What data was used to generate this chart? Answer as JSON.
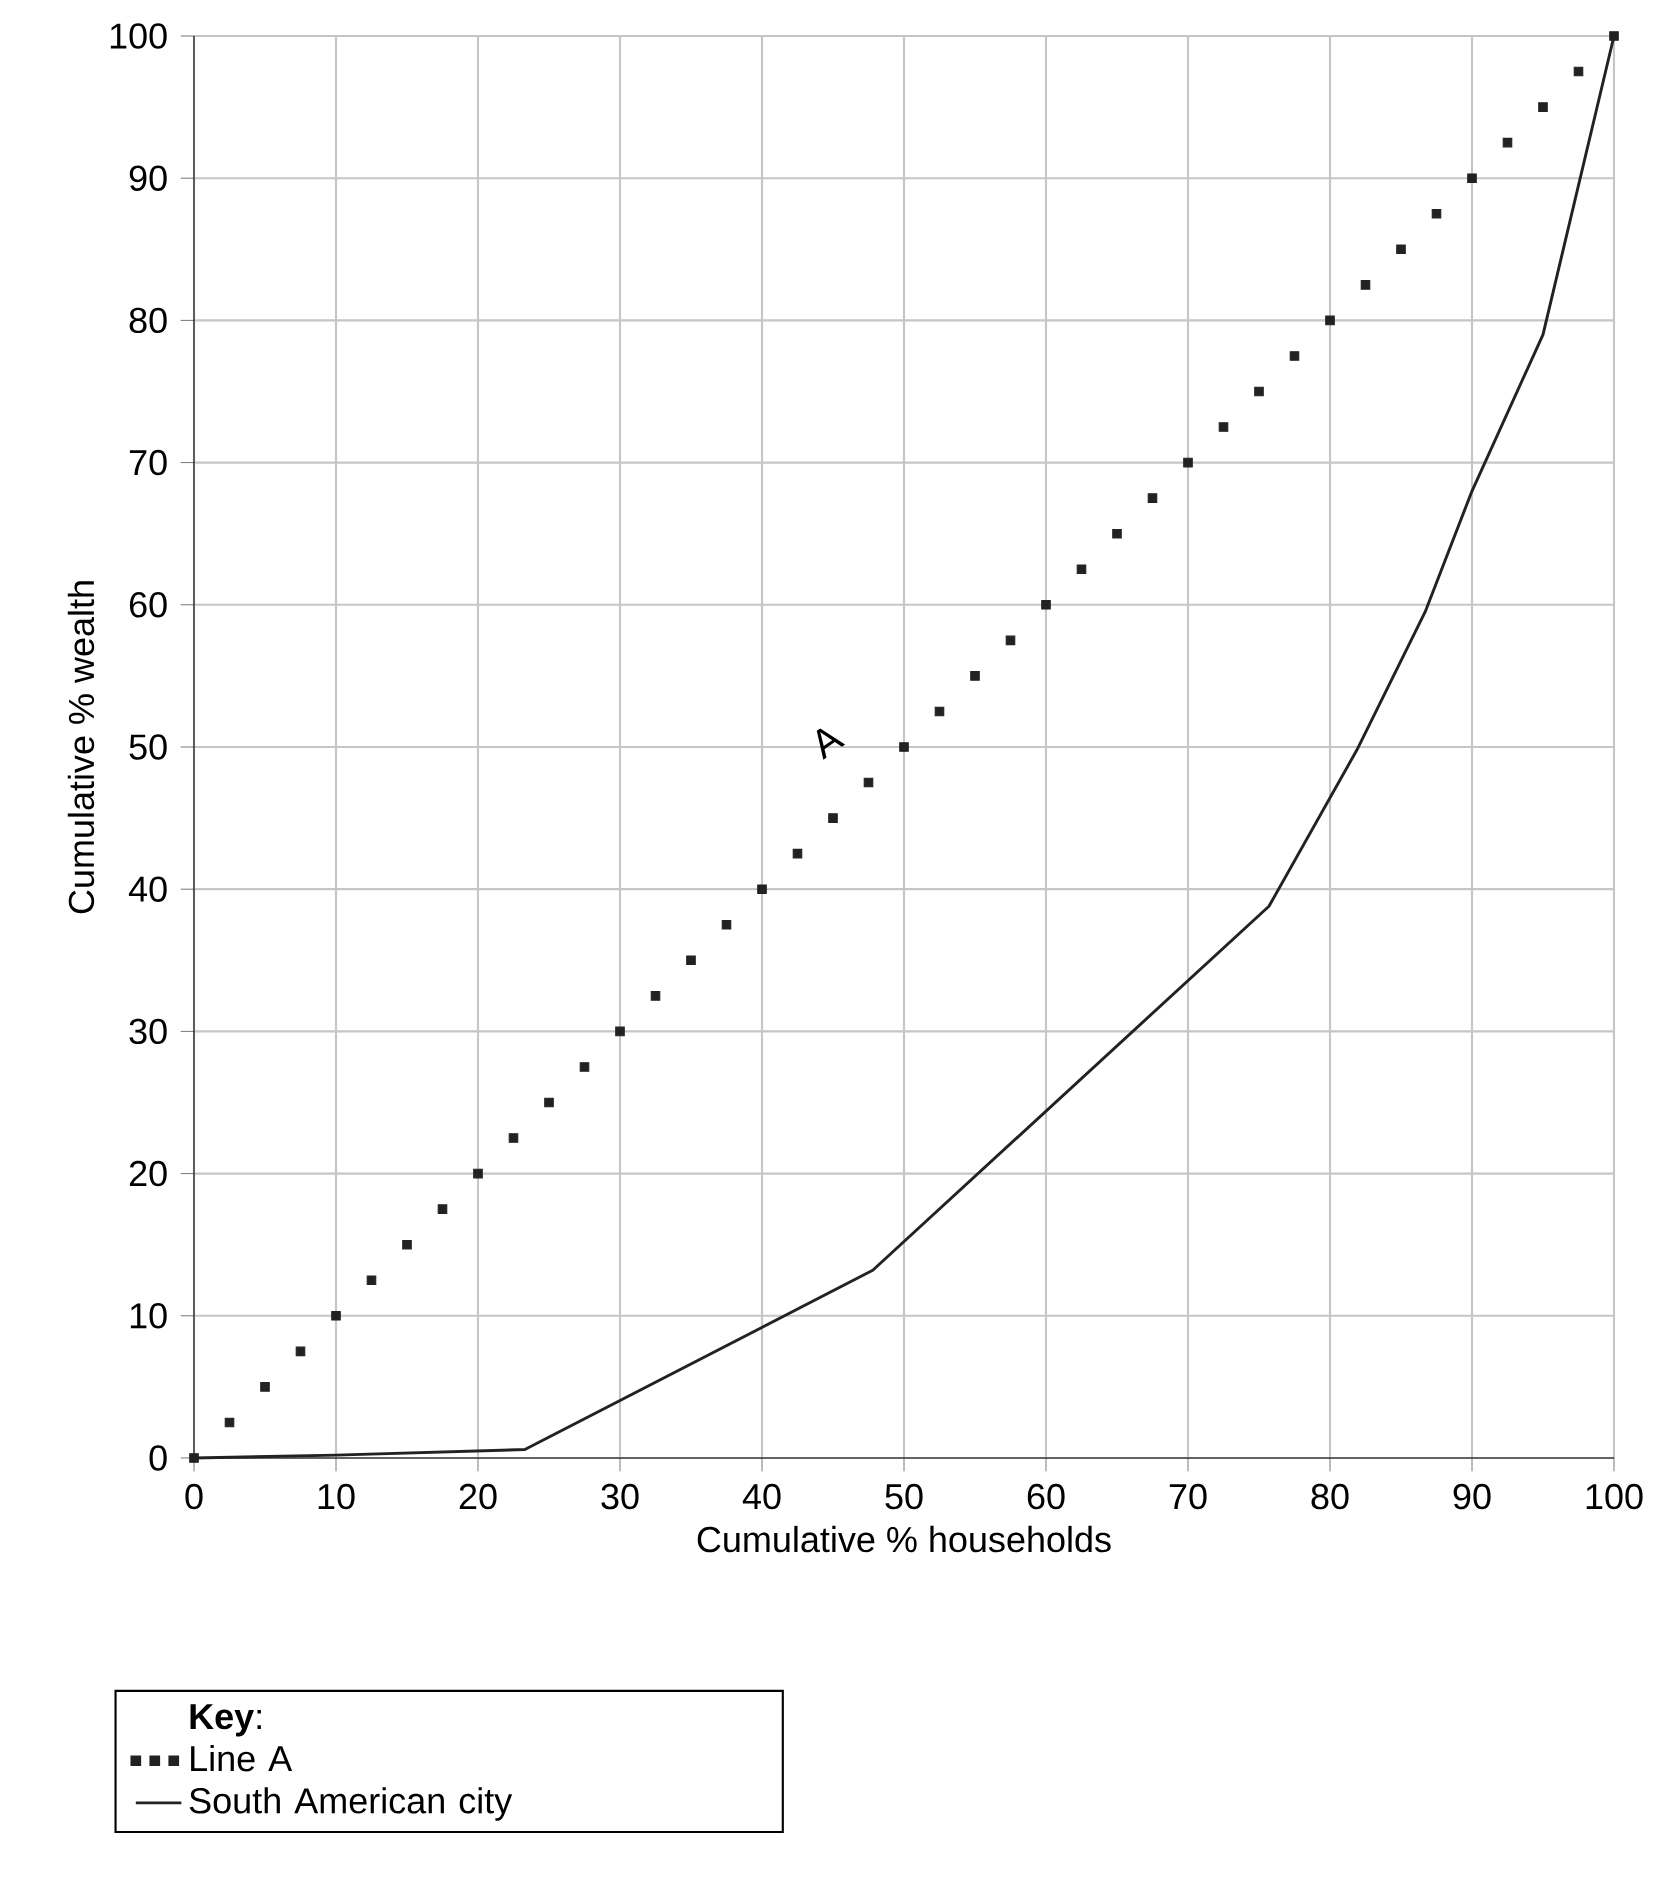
{
  "chart_data": {
    "type": "line",
    "xlabel": "Cumulative % households",
    "ylabel": "Cumulative % wealth",
    "legend_title": "**Key**:",
    "legend": "bottom left",
    "grid": true,
    "xlim": [
      0,
      100
    ],
    "ylim": [
      0,
      100
    ],
    "xticks": [
      0,
      10,
      20,
      30,
      40,
      50,
      60,
      70,
      80,
      90,
      100
    ],
    "yticks": [
      0,
      10,
      20,
      30,
      40,
      50,
      60,
      70,
      80,
      90,
      100
    ],
    "annotations": [
      {
        "text": "A",
        "x": 47.5,
        "y": 47.5
      }
    ],
    "series": [
      {
        "name": "Line A",
        "type": "scatter",
        "marker": "square",
        "color": "#222222",
        "x": [
          0,
          2.5,
          5,
          7.5,
          10,
          12.5,
          15,
          17.5,
          20,
          22.5,
          25,
          27.5,
          30,
          32.5,
          35,
          37.5,
          40,
          42.5,
          45,
          47.5,
          50,
          52.5,
          55,
          57.5,
          60,
          62.5,
          65,
          67.5,
          70,
          72.5,
          75,
          77.5,
          80,
          82.5,
          85,
          87.5,
          90,
          92.5,
          95,
          97.5,
          100
        ],
        "values": [
          0,
          2.5,
          5,
          7.5,
          10,
          12.5,
          15,
          17.5,
          20,
          22.5,
          25,
          27.5,
          30,
          32.5,
          35,
          37.5,
          40,
          42.5,
          45,
          47.5,
          50,
          52.5,
          55,
          57.5,
          60,
          62.5,
          65,
          67.5,
          70,
          72.5,
          75,
          77.5,
          80,
          82.5,
          85,
          87.5,
          90,
          92.5,
          95,
          97.5,
          100
        ]
      },
      {
        "name": "South American city",
        "line_style": "solid",
        "color": "#222222",
        "x": [
          0,
          10,
          23.3,
          47.8,
          75.7,
          81.9,
          86.7,
          90,
          95,
          100
        ],
        "values": [
          0,
          0.2,
          0.6,
          13.2,
          38.8,
          49.8,
          59.5,
          68,
          79,
          100
        ]
      }
    ]
  }
}
